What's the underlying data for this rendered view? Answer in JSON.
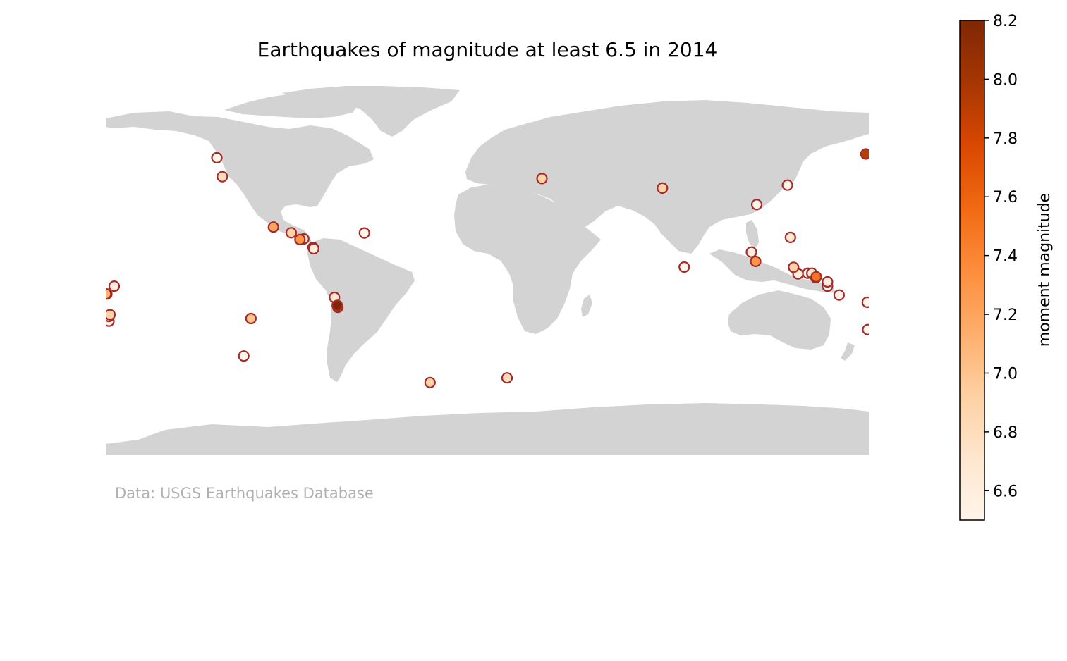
{
  "title": "Earthquakes of magnitude at least 6.5 in 2014",
  "source_note": "Data: USGS Earthquakes Database",
  "colors": {
    "land": "#d3d3d3",
    "marker_edge": "#a52a2a",
    "colormap": [
      "#fff5eb",
      "#fee6ce",
      "#fdd0a2",
      "#fdae6b",
      "#fd8d3c",
      "#f16913",
      "#d94801",
      "#a63603",
      "#7f2704"
    ]
  },
  "colorbar": {
    "label": "moment magnitude",
    "range": [
      6.5,
      8.2
    ],
    "ticks": [
      "6.6",
      "6.8",
      "7.0",
      "7.2",
      "7.4",
      "7.6",
      "7.8",
      "8.0",
      "8.2"
    ]
  },
  "map_data": {
    "projection": "equirectangular",
    "lon_range": [
      -180,
      180
    ],
    "lat_range": [
      -90,
      90
    ],
    "earthquakes": [
      {
        "lon": 178.6,
        "lat": 51.9,
        "mag": 7.9
      },
      {
        "lon": -70.8,
        "lat": -19.6,
        "mag": 8.2
      },
      {
        "lon": -70.5,
        "lat": -20.5,
        "mag": 7.7
      },
      {
        "lon": -72.1,
        "lat": -15.8,
        "mag": 6.7
      },
      {
        "lon": -100.9,
        "lat": 17.4,
        "mag": 7.2
      },
      {
        "lon": -92.5,
        "lat": 14.7,
        "mag": 6.9
      },
      {
        "lon": -88.4,
        "lat": 11.5,
        "mag": 7.3
      },
      {
        "lon": -86.6,
        "lat": 11.8,
        "mag": 6.6
      },
      {
        "lon": -82.2,
        "lat": 7.8,
        "mag": 6.6
      },
      {
        "lon": -81.9,
        "lat": 7.2,
        "mag": 6.6
      },
      {
        "lon": -58.0,
        "lat": 14.6,
        "mag": 6.5
      },
      {
        "lon": -127.6,
        "lat": 50.1,
        "mag": 6.5
      },
      {
        "lon": -125.0,
        "lat": 41.2,
        "mag": 6.8
      },
      {
        "lon": 25.8,
        "lat": 40.3,
        "mag": 6.9
      },
      {
        "lon": 82.6,
        "lat": 35.8,
        "mag": 6.9
      },
      {
        "lon": 141.6,
        "lat": 37.2,
        "mag": 6.5
      },
      {
        "lon": 127.1,
        "lat": 28.0,
        "mag": 6.5
      },
      {
        "lon": 143.0,
        "lat": 12.5,
        "mag": 6.7
      },
      {
        "lon": 124.6,
        "lat": 5.6,
        "mag": 6.6
      },
      {
        "lon": 126.6,
        "lat": 1.2,
        "mag": 7.3
      },
      {
        "lon": 144.5,
        "lat": -1.6,
        "mag": 6.9
      },
      {
        "lon": 146.6,
        "lat": -4.7,
        "mag": 6.6
      },
      {
        "lon": 151.2,
        "lat": -4.4,
        "mag": 6.5
      },
      {
        "lon": 153.1,
        "lat": -4.4,
        "mag": 6.7
      },
      {
        "lon": 155.2,
        "lat": -6.1,
        "mag": 7.5
      },
      {
        "lon": 155.0,
        "lat": -6.5,
        "mag": 7.1
      },
      {
        "lon": 160.5,
        "lat": -8.5,
        "mag": 6.6
      },
      {
        "lon": 160.5,
        "lat": -10.5,
        "mag": 6.5
      },
      {
        "lon": 166.0,
        "lat": -14.7,
        "mag": 6.5
      },
      {
        "lon": 179.3,
        "lat": -18.1,
        "mag": 6.5
      },
      {
        "lon": 179.5,
        "lat": -31.0,
        "mag": 6.5
      },
      {
        "lon": 92.9,
        "lat": -1.5,
        "mag": 6.5
      },
      {
        "lon": -179.9,
        "lat": -14.2,
        "mag": 7.1
      },
      {
        "lon": -179.5,
        "lat": -14.2,
        "mag": 6.6
      },
      {
        "lon": -176.0,
        "lat": -10.5,
        "mag": 6.6
      },
      {
        "lon": -178.0,
        "lat": -24.0,
        "mag": 6.9
      },
      {
        "lon": -178.5,
        "lat": -24.8,
        "mag": 6.6
      },
      {
        "lon": -178.5,
        "lat": -27.0,
        "mag": 6.5
      },
      {
        "lon": -111.5,
        "lat": -25.8,
        "mag": 7.0
      },
      {
        "lon": -114.9,
        "lat": -43.5,
        "mag": 6.5
      },
      {
        "lon": -27.0,
        "lat": -56.0,
        "mag": 6.9
      },
      {
        "lon": 9.3,
        "lat": -53.8,
        "mag": 6.8
      }
    ]
  }
}
